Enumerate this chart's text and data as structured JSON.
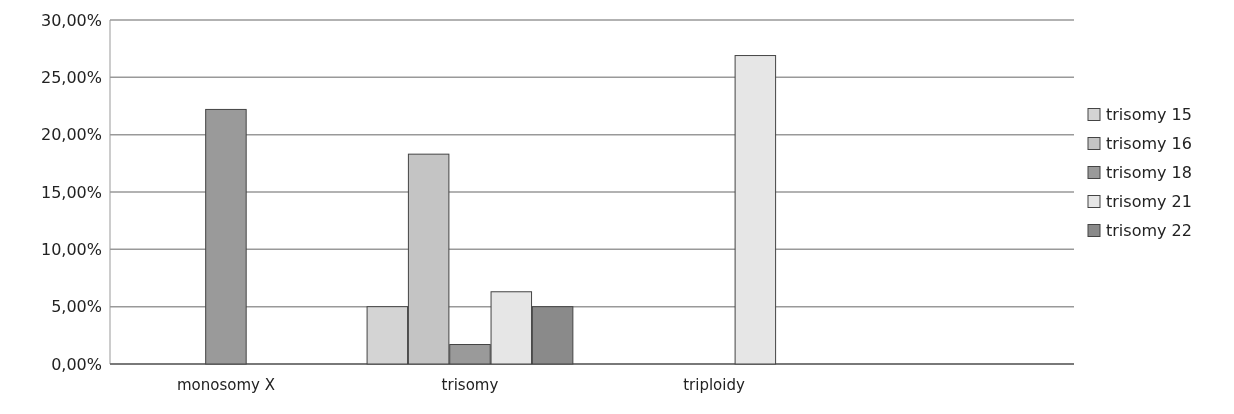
{
  "chart_data": {
    "type": "bar",
    "categories": [
      "monosomy X",
      "trisomy",
      "triploidy",
      null
    ],
    "series": [
      {
        "name": "trisomy 15",
        "color": "#d4d4d4",
        "values": [
          null,
          5,
          null,
          null
        ]
      },
      {
        "name": "trisomy 16",
        "color": "#c4c4c4",
        "values": [
          null,
          18.3,
          null,
          null
        ]
      },
      {
        "name": "trisomy 18",
        "color": "#9a9a9a",
        "values": [
          22.2,
          1.7,
          null,
          null
        ]
      },
      {
        "name": "trisomy 21",
        "color": "#e6e6e6",
        "values": [
          null,
          6.3,
          26.9,
          null
        ]
      },
      {
        "name": "trisomy 22",
        "color": "#8a8a8a",
        "values": [
          null,
          5,
          null,
          null
        ]
      }
    ],
    "ylim": [
      0,
      30
    ],
    "yticks": [
      {
        "value": 0,
        "label": "0,00%"
      },
      {
        "value": 5,
        "label": "5,00%"
      },
      {
        "value": 10,
        "label": "10,00%"
      },
      {
        "value": 15,
        "label": "15,00%"
      },
      {
        "value": 20,
        "label": "20,00%"
      },
      {
        "value": 25,
        "label": "25,00%"
      },
      {
        "value": 30,
        "label": "30,00%"
      }
    ],
    "grid": "y",
    "legend": "right"
  }
}
